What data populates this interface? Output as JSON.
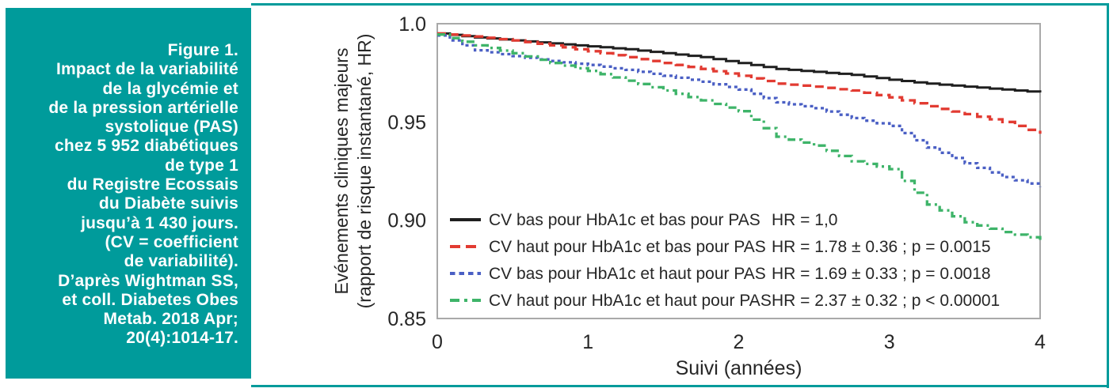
{
  "figure": {
    "caption_lines": [
      "Figure 1.",
      "Impact de la variabilité",
      "de la glycémie et",
      "de la pression artérielle",
      "systolique (PAS)",
      "chez 5 952 diabétiques",
      "de type 1",
      "du Registre Ecossais",
      "du Diabète suivis",
      "jusqu’à 1 430 jours.",
      "(CV = coefficient",
      "de variabilité).",
      "D’après Wightman SS,",
      "et coll. Diabetes Obes",
      "Metab. 2018 Apr;",
      "20(4):1014-17."
    ]
  },
  "colors": {
    "teal": "#009b9b",
    "text": "#262626",
    "plot_border": "#a9a9a9",
    "plot_background": "#ffffff"
  },
  "chart_data": {
    "type": "line",
    "title": "",
    "xlabel": "Suivi (années)",
    "ylabel_lines": [
      "Evénements cliniques majeurs",
      "(rapport de risque instantané, HR)"
    ],
    "xlim": [
      0,
      4
    ],
    "ylim": [
      0.85,
      1.0
    ],
    "grid": false,
    "legend_position": "inside-bottom-left",
    "xticks": [
      {
        "value": 0,
        "label": "0"
      },
      {
        "value": 1,
        "label": "1"
      },
      {
        "value": 2,
        "label": "2"
      },
      {
        "value": 3,
        "label": "3"
      },
      {
        "value": 4,
        "label": "4"
      }
    ],
    "yticks": [
      {
        "value": 1.0,
        "label": "1.0"
      },
      {
        "value": 0.95,
        "label": "0.95"
      },
      {
        "value": 0.9,
        "label": "0.90"
      },
      {
        "value": 0.85,
        "label": "0.85"
      }
    ],
    "x": [
      0,
      0.25,
      0.5,
      0.75,
      1.0,
      1.25,
      1.5,
      1.75,
      2.0,
      2.25,
      2.5,
      2.75,
      3.0,
      3.25,
      3.5,
      3.75,
      4.0
    ],
    "series": [
      {
        "name": "CV bas pour HbA1c et bas pour PAS",
        "hr_label": "HR = 1,0",
        "color": "#1f1f1f",
        "style": "solid",
        "values": [
          0.995,
          0.993,
          0.9915,
          0.99,
          0.9885,
          0.987,
          0.985,
          0.983,
          0.98,
          0.977,
          0.9755,
          0.974,
          0.9715,
          0.9695,
          0.968,
          0.9665,
          0.965
        ]
      },
      {
        "name": "CV haut pour HbA1c et bas pour PAS",
        "hr_label": "HR = 1.78 ± 0.36 ; p = 0.0015",
        "color": "#e23b32",
        "style": "dashed",
        "values": [
          0.995,
          0.9935,
          0.9915,
          0.989,
          0.986,
          0.983,
          0.98,
          0.977,
          0.9735,
          0.9695,
          0.968,
          0.966,
          0.9625,
          0.958,
          0.954,
          0.95,
          0.944
        ]
      },
      {
        "name": "CV bas pour HbA1c et haut pour PAS",
        "hr_label": "HR = 1.69 ± 0.33 ; p = 0.0018",
        "color": "#4a5fc4",
        "style": "dotted",
        "values": [
          0.994,
          0.9865,
          0.9835,
          0.981,
          0.979,
          0.9765,
          0.9735,
          0.9705,
          0.9665,
          0.96,
          0.957,
          0.952,
          0.948,
          0.937,
          0.929,
          0.922,
          0.917
        ]
      },
      {
        "name": "CV haut pour HbA1c et haut pour PAS",
        "hr_label": "HR = 2.37 ± 0.32 ; p < 0.00001",
        "color": "#3eb469",
        "style": "dashdot",
        "values": [
          0.9945,
          0.989,
          0.985,
          0.98,
          0.976,
          0.971,
          0.966,
          0.961,
          0.9555,
          0.9425,
          0.938,
          0.93,
          0.926,
          0.908,
          0.899,
          0.894,
          0.89
        ]
      }
    ]
  }
}
